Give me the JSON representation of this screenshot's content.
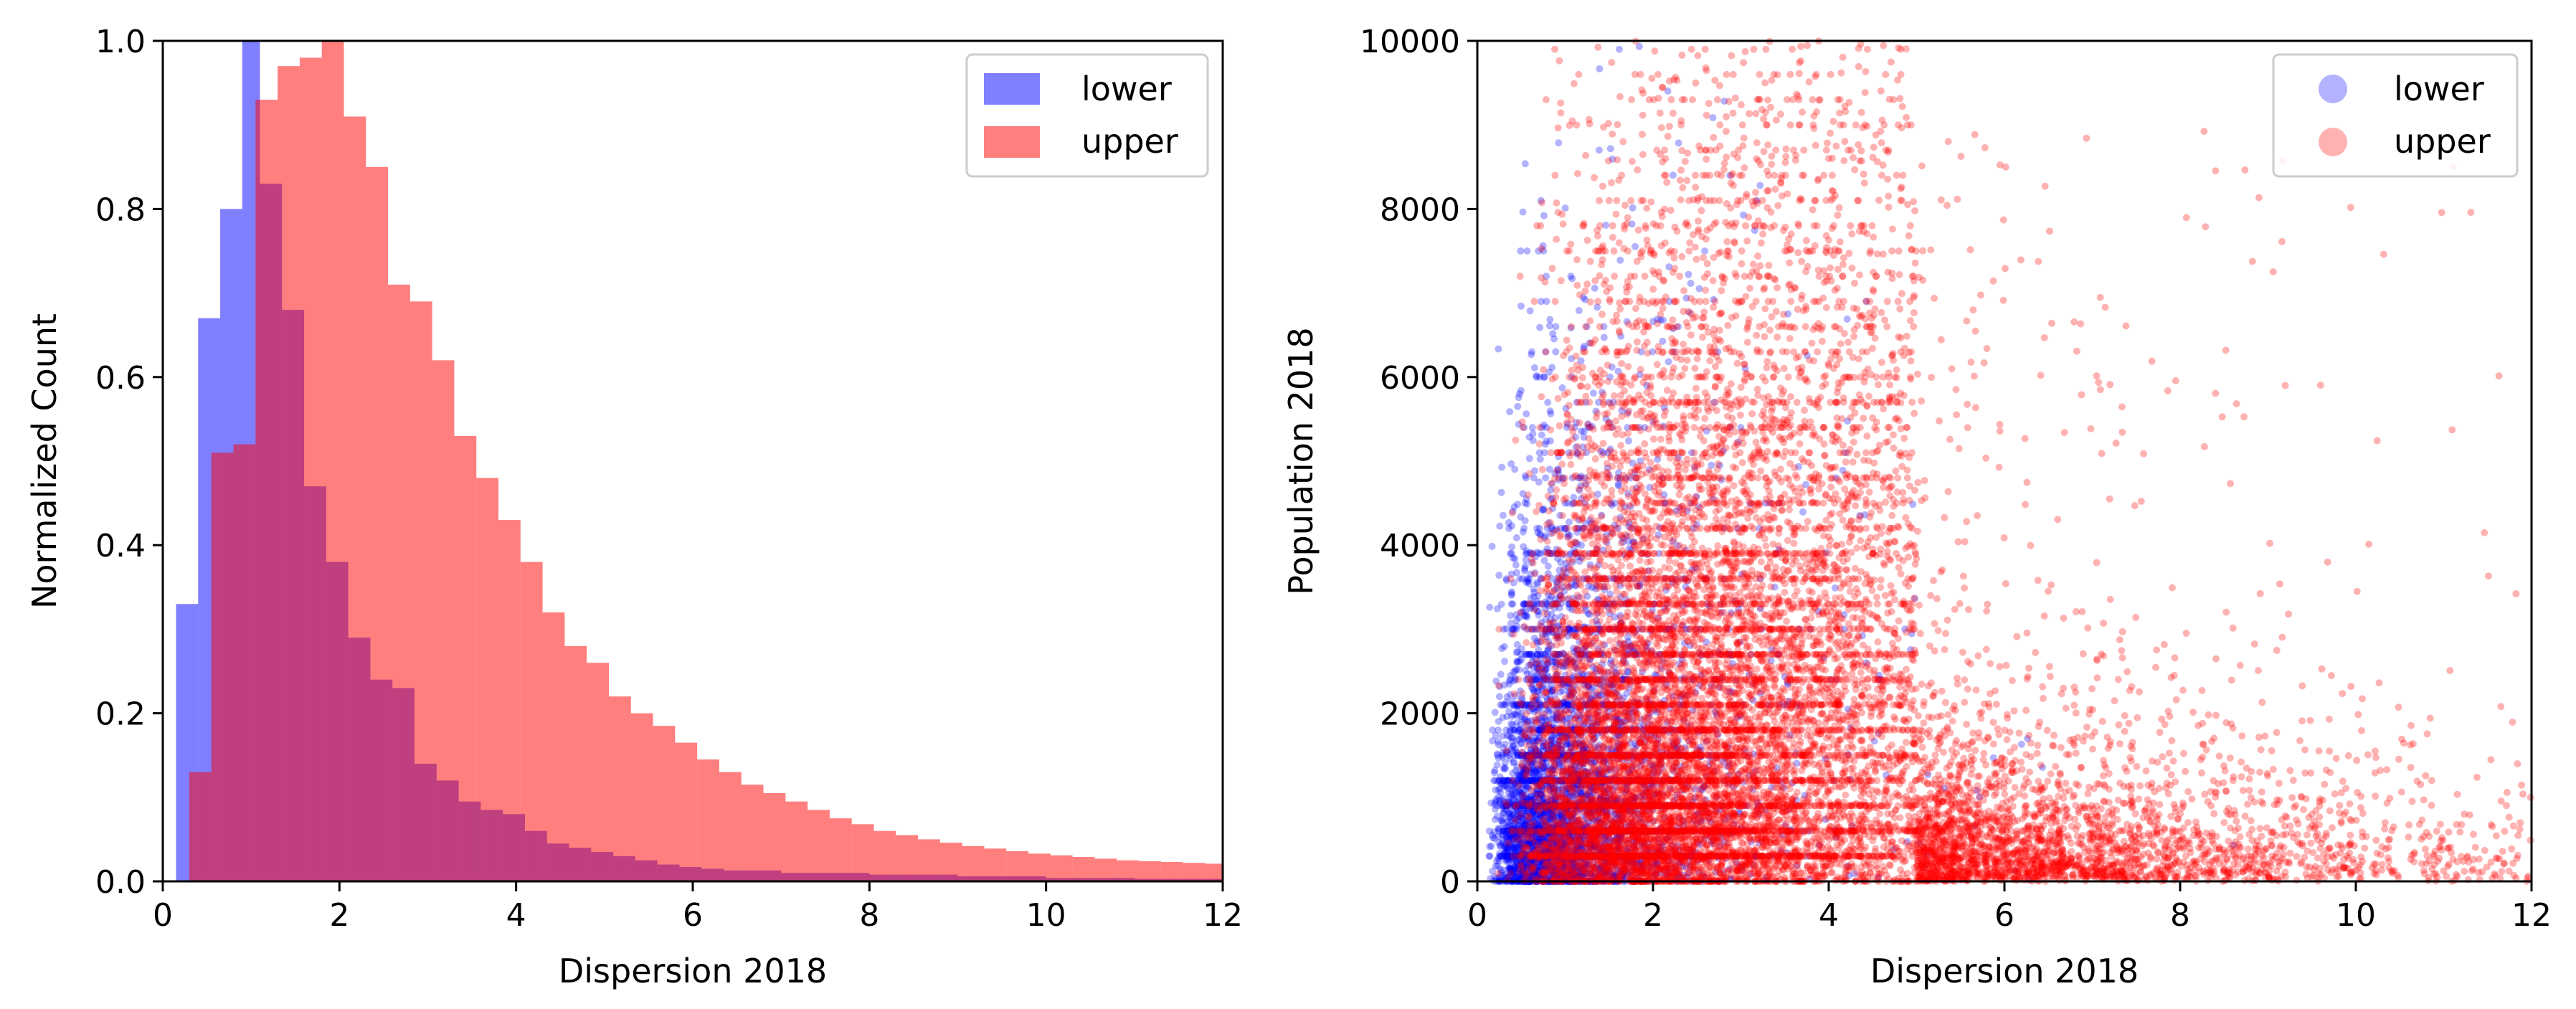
{
  "chart_data": [
    {
      "type": "histogram",
      "id": "hist",
      "xlabel": "Dispersion 2018",
      "ylabel": "Normalized Count",
      "xlim": [
        0,
        12
      ],
      "ylim": [
        0,
        1.0
      ],
      "xticks": [
        0,
        2,
        4,
        6,
        8,
        10,
        12
      ],
      "xtick_labels": [
        "0",
        "2",
        "4",
        "6",
        "8",
        "10",
        "12"
      ],
      "yticks": [
        0.0,
        0.2,
        0.4,
        0.6,
        0.8,
        1.0
      ],
      "ytick_labels": [
        "0.0",
        "0.2",
        "0.4",
        "0.6",
        "0.8",
        "1.0"
      ],
      "legend_position": "top-right",
      "series": [
        {
          "name": "lower",
          "color": "#0000ff",
          "alpha": 0.5,
          "bin_edges": [
            0.15,
            0.4,
            0.65,
            0.9,
            1.1,
            1.35,
            1.6,
            1.85,
            2.1,
            2.35,
            2.6,
            2.85,
            3.1,
            3.35,
            3.6,
            3.85,
            4.1,
            4.35,
            4.6,
            4.85,
            5.1,
            5.35,
            5.6,
            5.85,
            6.1,
            6.35,
            7.0,
            8.0,
            9.0,
            10.0,
            11.0,
            12.0
          ],
          "values": [
            0.33,
            0.67,
            0.8,
            1.0,
            0.83,
            0.68,
            0.47,
            0.38,
            0.29,
            0.24,
            0.23,
            0.14,
            0.12,
            0.095,
            0.085,
            0.08,
            0.06,
            0.045,
            0.04,
            0.035,
            0.03,
            0.025,
            0.02,
            0.017,
            0.015,
            0.013,
            0.01,
            0.008,
            0.006,
            0.004,
            0.003
          ]
        },
        {
          "name": "upper",
          "color": "#ff0000",
          "alpha": 0.5,
          "bin_edges": [
            0.3,
            0.55,
            0.8,
            1.05,
            1.3,
            1.55,
            1.8,
            2.05,
            2.3,
            2.55,
            2.8,
            3.05,
            3.3,
            3.55,
            3.8,
            4.05,
            4.3,
            4.55,
            4.8,
            5.05,
            5.3,
            5.55,
            5.8,
            6.05,
            6.3,
            6.55,
            6.8,
            7.05,
            7.3,
            7.55,
            7.8,
            8.05,
            8.3,
            8.55,
            8.8,
            9.05,
            9.3,
            9.55,
            9.8,
            10.05,
            10.3,
            10.55,
            10.8,
            11.05,
            11.3,
            11.55,
            11.8,
            12.0
          ],
          "values": [
            0.13,
            0.51,
            0.52,
            0.93,
            0.97,
            0.98,
            1.0,
            0.91,
            0.85,
            0.71,
            0.69,
            0.62,
            0.53,
            0.48,
            0.43,
            0.38,
            0.32,
            0.28,
            0.26,
            0.22,
            0.2,
            0.185,
            0.165,
            0.145,
            0.13,
            0.115,
            0.105,
            0.095,
            0.085,
            0.075,
            0.068,
            0.06,
            0.055,
            0.05,
            0.046,
            0.042,
            0.039,
            0.036,
            0.033,
            0.031,
            0.029,
            0.027,
            0.025,
            0.024,
            0.023,
            0.022,
            0.021
          ]
        }
      ]
    },
    {
      "type": "scatter",
      "id": "scatter",
      "xlabel": "Dispersion 2018",
      "ylabel": "Population 2018",
      "xlim": [
        0,
        12
      ],
      "ylim": [
        0,
        10000
      ],
      "xticks": [
        0,
        2,
        4,
        6,
        8,
        10,
        12
      ],
      "xtick_labels": [
        "0",
        "2",
        "4",
        "6",
        "8",
        "10",
        "12"
      ],
      "yticks": [
        0,
        2000,
        4000,
        6000,
        8000,
        10000
      ],
      "ytick_labels": [
        "0",
        "2000",
        "4000",
        "6000",
        "8000",
        "10000"
      ],
      "legend_position": "top-right",
      "series": [
        {
          "name": "lower",
          "color": "#0000ff",
          "alpha": 0.3,
          "point_count": 5000,
          "distribution": {
            "x_median": 1.0,
            "x_spread": 0.6,
            "y_scale": 1800
          }
        },
        {
          "name": "upper",
          "color": "#ff0000",
          "alpha": 0.3,
          "point_count": 14000,
          "distribution": {
            "x_median": 3.0,
            "x_spread": 0.65,
            "y_scale": 2500
          }
        }
      ]
    }
  ]
}
